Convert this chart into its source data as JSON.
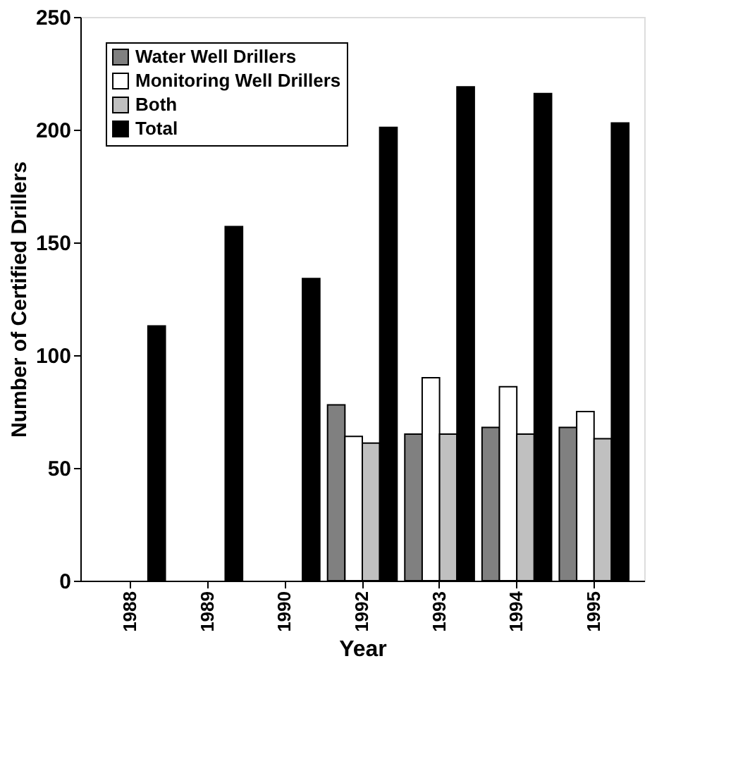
{
  "chart_data": {
    "type": "bar",
    "xlabel": "Year",
    "ylabel": "Number of Certified Drillers",
    "categories": [
      "1988",
      "1989",
      "1990",
      "1992",
      "1993",
      "1994",
      "1995"
    ],
    "series": [
      {
        "name": "Water Well Drillers",
        "color": "#808080",
        "values": [
          null,
          null,
          null,
          78,
          65,
          68,
          68
        ]
      },
      {
        "name": "Monitoring Well Drillers",
        "color": "#ffffff",
        "values": [
          null,
          null,
          null,
          64,
          90,
          86,
          75
        ]
      },
      {
        "name": "Both",
        "color": "#c0c0c0",
        "values": [
          null,
          null,
          null,
          61,
          65,
          65,
          63
        ]
      },
      {
        "name": "Total",
        "color": "#000000",
        "values": [
          113,
          157,
          134,
          201,
          219,
          216,
          203
        ]
      }
    ],
    "ylim": [
      0,
      250
    ],
    "yticks": [
      0,
      50,
      100,
      150,
      200,
      250
    ],
    "grid": false,
    "legend": "top left"
  }
}
